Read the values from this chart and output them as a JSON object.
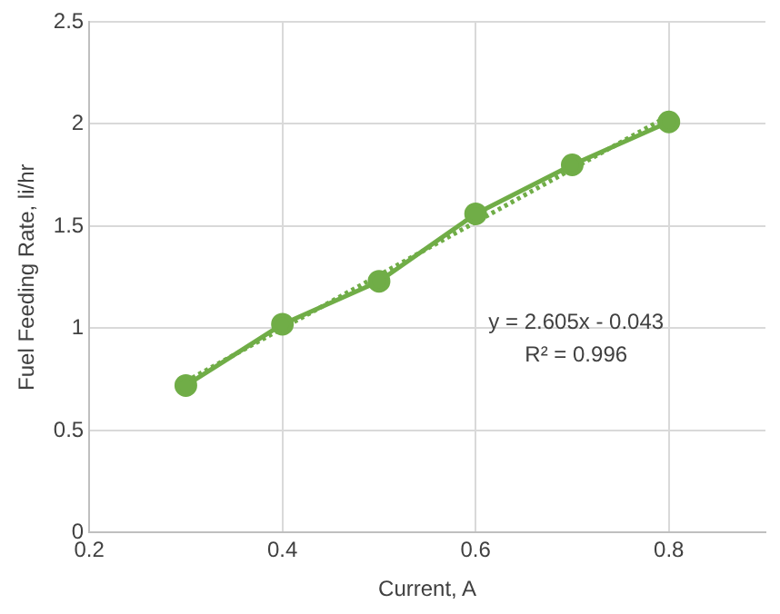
{
  "chart_data": {
    "type": "line",
    "xlabel": "Current, A",
    "ylabel": "Fuel Feeding Rate, li/hr",
    "x": [
      0.3,
      0.4,
      0.5,
      0.6,
      0.7,
      0.8
    ],
    "series": [
      {
        "color": "#70ad47",
        "values": [
          0.72,
          1.02,
          1.23,
          1.56,
          1.8,
          2.01
        ],
        "marker": "circle",
        "line_style": "solid"
      },
      {
        "type": "line",
        "color": "#70ad47",
        "x": [
          0.3,
          0.8
        ],
        "values": [
          0.74,
          2.04
        ],
        "marker": "none",
        "line_style": "dotted"
      }
    ],
    "xlim": [
      0.2,
      0.9
    ],
    "xticks": [
      0.2,
      0.4,
      0.6,
      0.8
    ],
    "ylim": [
      0,
      2.5
    ],
    "yticks": [
      0,
      0.5,
      1,
      1.5,
      2,
      2.5
    ],
    "grid": true,
    "legend": false,
    "annotations": [
      "y = 2.605x - 0.043",
      "R² = 0.996"
    ]
  }
}
